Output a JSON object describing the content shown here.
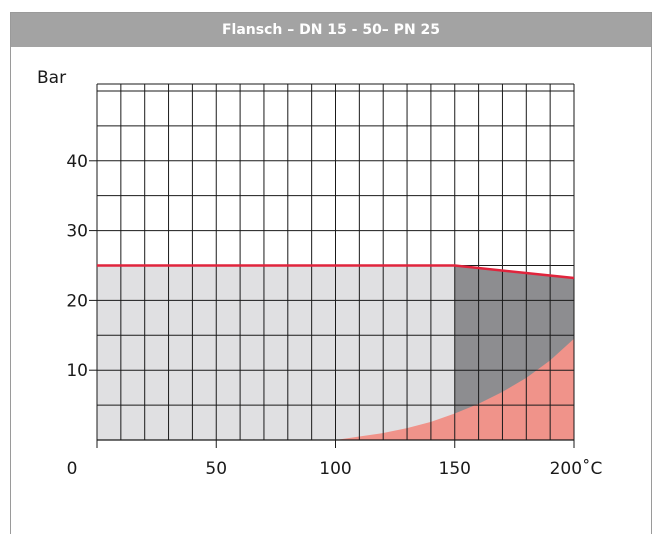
{
  "header": {
    "title": "Flansch – DN 15 - 50– PN 25"
  },
  "chart_data": {
    "type": "area",
    "title": "Flansch – DN 15 - 50– PN 25",
    "ylabel": "Bar",
    "xlabel": "",
    "x_unit_label": "°C",
    "xlim": [
      0,
      200
    ],
    "ylim": [
      0,
      51
    ],
    "x_ticks": [
      0,
      50,
      100,
      150,
      200
    ],
    "x_tick_labels": [
      "0",
      "50",
      "100",
      "150",
      "200˚C"
    ],
    "y_ticks": [
      10,
      20,
      30,
      40
    ],
    "y_tick_labels": [
      "10",
      "20",
      "30",
      "40"
    ],
    "grid": true,
    "grid_x_step": 10,
    "grid_y_step": 5,
    "series": [
      {
        "role": "pressure-limit-line",
        "color": "#e0243c",
        "x": [
          0,
          150,
          200
        ],
        "y": [
          25,
          25,
          23.2
        ]
      },
      {
        "role": "operating-area-light",
        "color": "#e0e0e2",
        "x": [
          0,
          150
        ],
        "y": [
          25,
          25
        ]
      },
      {
        "role": "operating-area-dark",
        "color": "#8d8d90",
        "x": [
          150,
          200
        ],
        "y": [
          25,
          23.2
        ]
      },
      {
        "role": "saturation-curve-area",
        "color": "#f0938a",
        "x": [
          100,
          110,
          120,
          130,
          140,
          150,
          160,
          170,
          180,
          190,
          200
        ],
        "y": [
          0,
          0.5,
          1.0,
          1.7,
          2.6,
          3.8,
          5.2,
          6.9,
          8.9,
          11.4,
          14.5
        ]
      }
    ],
    "colors": {
      "grid": "#1a1a1a",
      "limit_line": "#e0243c",
      "light_area": "#e0e0e2",
      "dark_area": "#8d8d90",
      "curve_area": "#f0938a"
    }
  }
}
